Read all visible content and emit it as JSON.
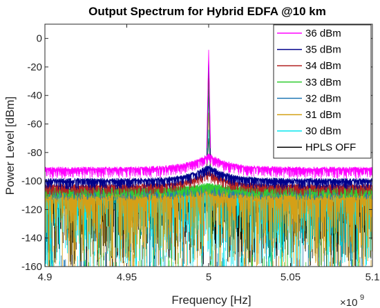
{
  "chart_data": {
    "type": "line",
    "title": "Output Spectrum for Hybrid EDFA @10 km",
    "xlabel": "Frequency [Hz]",
    "ylabel": "Power Level [dBm]",
    "x_exponent_label": "×10",
    "x_exponent_power": "9",
    "xlim": [
      4.9,
      5.1
    ],
    "ylim": [
      -160,
      10
    ],
    "x_ticks": [
      4.9,
      4.95,
      5.0,
      5.05,
      5.1
    ],
    "x_tick_labels": [
      "4.9",
      "4.95",
      "5",
      "5.05",
      "5.1"
    ],
    "y_ticks": [
      0,
      -20,
      -40,
      -60,
      -80,
      -100,
      -120,
      -140,
      -160
    ],
    "y_tick_labels": [
      "0",
      "-20",
      "-40",
      "-60",
      "-80",
      "-100",
      "-120",
      "-140",
      "-160"
    ],
    "center_frequency": 5.0,
    "grid": false,
    "legend_position": "top-right",
    "series": [
      {
        "name": "36 dBm",
        "color": "#ff00ff",
        "peak_dbm": -8,
        "floor_dbm": -92
      },
      {
        "name": "35 dBm",
        "color": "#00008b",
        "peak_dbm": -12,
        "floor_dbm": -100
      },
      {
        "name": "34 dBm",
        "color": "#b22222",
        "peak_dbm": -20,
        "floor_dbm": -104
      },
      {
        "name": "33 dBm",
        "color": "#32cd32",
        "peak_dbm": -30,
        "floor_dbm": -106
      },
      {
        "name": "32 dBm",
        "color": "#1f77b4",
        "peak_dbm": -40,
        "floor_dbm": -107
      },
      {
        "name": "31 dBm",
        "color": "#d4a017",
        "peak_dbm": -52,
        "floor_dbm": -108
      },
      {
        "name": "30 dBm",
        "color": "#00e5ee",
        "peak_dbm": -64,
        "floor_dbm": -108
      },
      {
        "name": "HPLS OFF",
        "color": "#000000",
        "peak_dbm": -70,
        "floor_dbm": -109
      }
    ]
  }
}
